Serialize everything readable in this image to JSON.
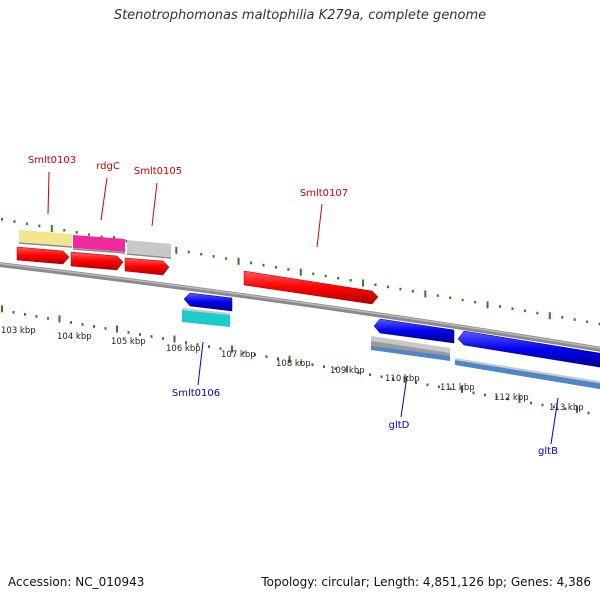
{
  "title": "Stenotrophomonas maltophilia K279a, complete genome",
  "footer": {
    "accession": "Accession: NC_010943",
    "summary": "Topology: circular; Length: 4,851,126 bp; Genes: 4,386"
  },
  "colors": {
    "backbone": "#808080",
    "tick": "#2e7d1f",
    "forward_label": "#cc0000",
    "reverse_label": "#0000cc",
    "cds_forward": "#ff0000",
    "cds_reverse": "#0000ee"
  },
  "scale": {
    "unit": "kbp",
    "labels": [
      "103 kbp",
      "104 kbp",
      "105 kbp",
      "106 kbp",
      "107 kbp",
      "108 kbp",
      "109 kbp",
      "110 kbp",
      "111 kbp",
      "112 kbp",
      "113 kbp"
    ]
  },
  "gene_labels": [
    {
      "text": "Smlt0103",
      "strand": "forward"
    },
    {
      "text": "rdgC",
      "strand": "forward"
    },
    {
      "text": "Smlt0105",
      "strand": "forward"
    },
    {
      "text": "Smlt0107",
      "strand": "forward"
    },
    {
      "text": "Smlt0106",
      "strand": "reverse"
    },
    {
      "text": "gltD",
      "strand": "reverse"
    },
    {
      "text": "gltB",
      "strand": "reverse"
    }
  ],
  "features": {
    "forward_top": [
      {
        "name": "Smlt0103-feature",
        "color": "#f2e68c"
      },
      {
        "name": "rdgC-feature",
        "color": "#f02a9e"
      },
      {
        "name": "Smlt0105-feature",
        "color": "#c8c8c8"
      }
    ],
    "forward_cds": [
      {
        "name": "Smlt0103-cds"
      },
      {
        "name": "rdgC-cds"
      },
      {
        "name": "Smlt0105-cds"
      },
      {
        "name": "Smlt0107-cds"
      }
    ],
    "reverse_cds": [
      {
        "name": "Smlt0106-cds"
      },
      {
        "name": "gltD-cds"
      },
      {
        "name": "gltB-cds"
      }
    ],
    "reverse_bottom": [
      {
        "name": "Smlt0106-feature",
        "color": "#1ccccc"
      },
      {
        "name": "gltD-feature",
        "color": "#4f86c6"
      },
      {
        "name": "gltB-feature",
        "color": "#4f86c6"
      }
    ]
  }
}
